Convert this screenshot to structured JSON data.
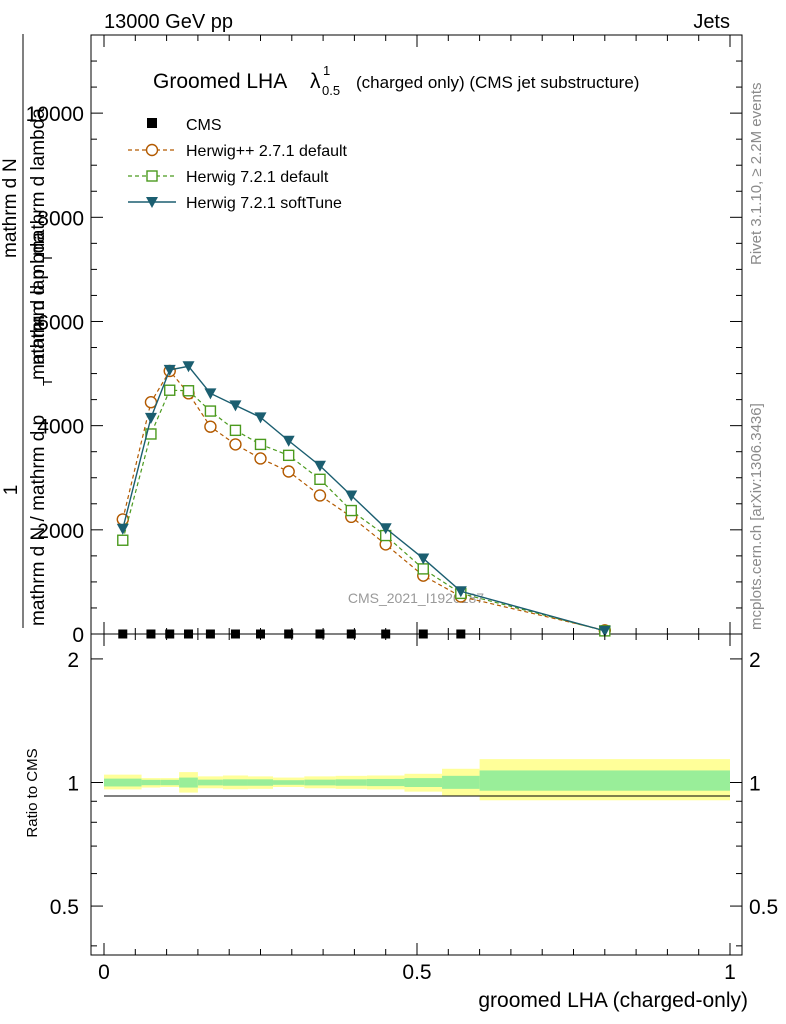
{
  "header": {
    "left": "13000 GeV pp",
    "right": "Jets"
  },
  "side_labels": {
    "rivet": "Rivet 3.1.10, ≥ 2.2M events",
    "mcplots": "mcplots.cern.ch [arXiv:1306.3436]"
  },
  "watermark": "CMS_2021_I1920187",
  "chart_data": [
    {
      "type": "line",
      "title": {
        "main": "Groomed LHA",
        "symbol": "λ",
        "sup": "1",
        "sub": "0.5",
        "suffix": "(charged only) (CMS jet substructure)"
      },
      "ylabel": {
        "numerator_one": "1",
        "numerator_frac": "mathrm d",
        "numerator_n": "N",
        "long": "mathrm d N / mathrm d p",
        "long_sub": "T",
        "long_tail": " mathrm d lambda",
        "long2": "mathrm d p",
        "long2_sub": "T",
        "long2_tail": " mathrm d lambda"
      },
      "xlim": [
        0,
        1
      ],
      "ylim": [
        0,
        11500
      ],
      "yticks": [
        0,
        2000,
        4000,
        6000,
        8000,
        10000
      ],
      "ytick_labels": [
        "0",
        "2000",
        "4000",
        "6000",
        "8000",
        "10000"
      ],
      "legend_position": "top-left",
      "series": [
        {
          "name": "CMS",
          "marker": "square-filled",
          "color": "#000000",
          "x": [
            0.03,
            0.075,
            0.105,
            0.135,
            0.17,
            0.21,
            0.25,
            0.295,
            0.345,
            0.395,
            0.45,
            0.51,
            0.57
          ],
          "y": [
            0,
            0,
            0,
            0,
            0,
            0,
            0,
            0,
            0,
            0,
            0,
            0,
            0
          ],
          "xerr": [
            0.03,
            0.015,
            0.015,
            0.015,
            0.02,
            0.02,
            0.02,
            0.025,
            0.025,
            0.025,
            0.03,
            0.03,
            0.03
          ]
        },
        {
          "name": "Herwig++ 2.7.1 default",
          "marker": "circle-open",
          "color": "#b35a00",
          "dashed": true,
          "x": [
            0.03,
            0.075,
            0.105,
            0.135,
            0.17,
            0.21,
            0.25,
            0.295,
            0.345,
            0.395,
            0.45,
            0.51,
            0.57,
            0.8
          ],
          "y": [
            2200,
            4450,
            5050,
            4620,
            3980,
            3640,
            3370,
            3120,
            2660,
            2250,
            1720,
            1120,
            720,
            70
          ]
        },
        {
          "name": "Herwig 7.2.1 default",
          "marker": "square-open",
          "color": "#4b9a1e",
          "dashed": true,
          "x": [
            0.03,
            0.075,
            0.105,
            0.135,
            0.17,
            0.21,
            0.25,
            0.295,
            0.345,
            0.395,
            0.45,
            0.51,
            0.57,
            0.8
          ],
          "y": [
            1800,
            3840,
            4680,
            4670,
            4280,
            3910,
            3640,
            3430,
            2970,
            2370,
            1890,
            1250,
            780,
            60
          ]
        },
        {
          "name": "Herwig 7.2.1 softTune",
          "marker": "triangle-down-filled",
          "color": "#1b5e70",
          "dashed": false,
          "x": [
            0.03,
            0.075,
            0.105,
            0.135,
            0.17,
            0.21,
            0.25,
            0.295,
            0.345,
            0.395,
            0.45,
            0.51,
            0.57,
            0.8
          ],
          "y": [
            2020,
            4150,
            5070,
            5140,
            4620,
            4390,
            4160,
            3710,
            3230,
            2660,
            2030,
            1450,
            820,
            60
          ]
        }
      ]
    },
    {
      "type": "area",
      "ylabel": "Ratio to CMS",
      "xlabel": "groomed LHA (charged-only)",
      "xlim": [
        0,
        1
      ],
      "ylim": [
        0.38,
        2.3
      ],
      "yticks": [
        0.5,
        1,
        2
      ],
      "ytick_labels": [
        "0.5",
        "1",
        "2"
      ],
      "xticks": [
        0,
        0.5,
        1
      ],
      "xtick_labels": [
        "0",
        "0.5",
        "1"
      ],
      "band_colors": {
        "outer": "#ffff99",
        "inner": "#99ee99",
        "reference": "#000000"
      },
      "bins": [
        {
          "x0": 0.0,
          "x1": 0.06,
          "outer": [
            0.962,
            1.045
          ],
          "inner": [
            0.978,
            1.022
          ]
        },
        {
          "x0": 0.06,
          "x1": 0.09,
          "outer": [
            0.972,
            1.025
          ],
          "inner": [
            0.985,
            1.015
          ]
        },
        {
          "x0": 0.09,
          "x1": 0.12,
          "outer": [
            0.975,
            1.025
          ],
          "inner": [
            0.985,
            1.015
          ]
        },
        {
          "x0": 0.12,
          "x1": 0.15,
          "outer": [
            0.945,
            1.06
          ],
          "inner": [
            0.972,
            1.028
          ]
        },
        {
          "x0": 0.15,
          "x1": 0.19,
          "outer": [
            0.968,
            1.035
          ],
          "inner": [
            0.984,
            1.016
          ]
        },
        {
          "x0": 0.19,
          "x1": 0.23,
          "outer": [
            0.963,
            1.04
          ],
          "inner": [
            0.982,
            1.018
          ]
        },
        {
          "x0": 0.23,
          "x1": 0.27,
          "outer": [
            0.965,
            1.035
          ],
          "inner": [
            0.982,
            1.018
          ]
        },
        {
          "x0": 0.27,
          "x1": 0.32,
          "outer": [
            0.975,
            1.028
          ],
          "inner": [
            0.987,
            1.013
          ]
        },
        {
          "x0": 0.32,
          "x1": 0.37,
          "outer": [
            0.968,
            1.035
          ],
          "inner": [
            0.984,
            1.016
          ]
        },
        {
          "x0": 0.37,
          "x1": 0.42,
          "outer": [
            0.965,
            1.038
          ],
          "inner": [
            0.982,
            1.018
          ]
        },
        {
          "x0": 0.42,
          "x1": 0.48,
          "outer": [
            0.962,
            1.04
          ],
          "inner": [
            0.98,
            1.02
          ]
        },
        {
          "x0": 0.48,
          "x1": 0.54,
          "outer": [
            0.95,
            1.05
          ],
          "inner": [
            0.975,
            1.025
          ]
        },
        {
          "x0": 0.54,
          "x1": 0.6,
          "outer": [
            0.93,
            1.08
          ],
          "inner": [
            0.965,
            1.038
          ]
        },
        {
          "x0": 0.6,
          "x1": 1.0,
          "outer": [
            0.905,
            1.14
          ],
          "inner": [
            0.955,
            1.07
          ]
        }
      ]
    }
  ]
}
